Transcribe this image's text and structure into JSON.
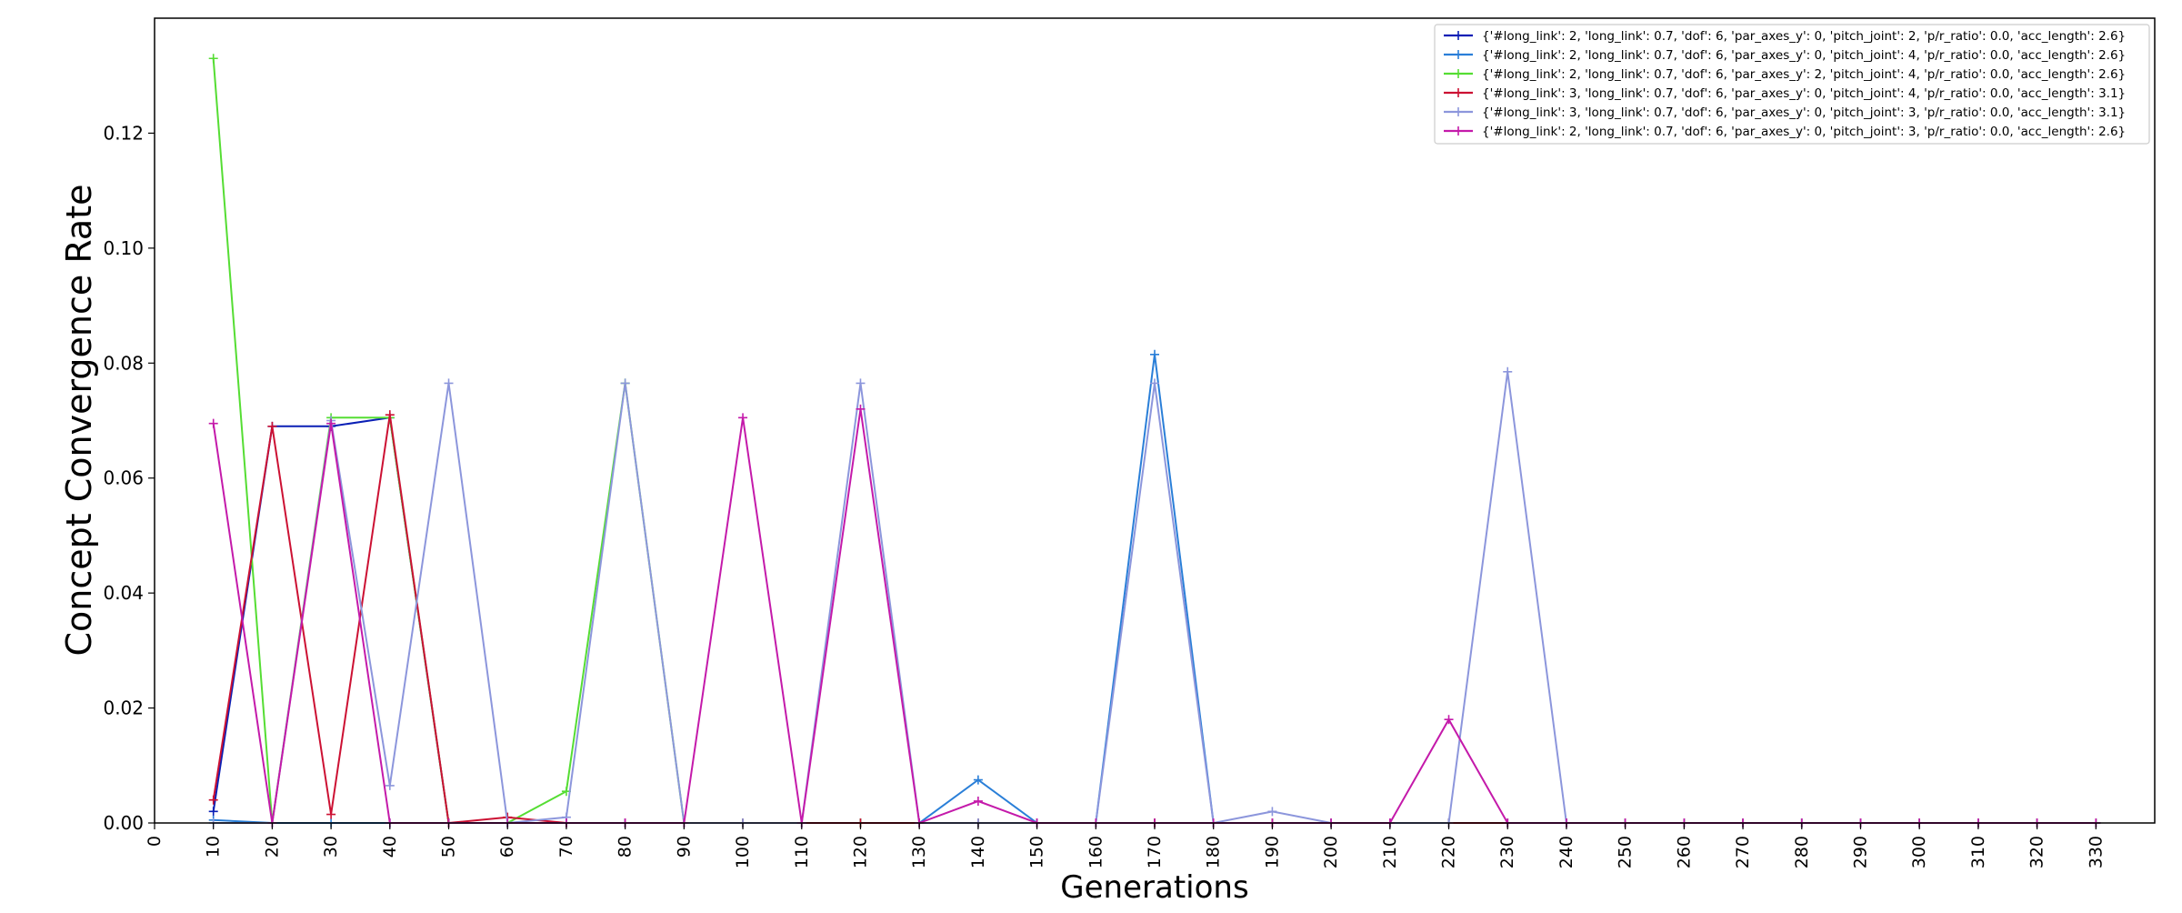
{
  "chart_data": {
    "type": "line",
    "title": "",
    "xlabel": "Generations",
    "ylabel": "Concept Convergence Rate",
    "xlim": [
      0,
      340
    ],
    "ylim": [
      0,
      0.14
    ],
    "x_ticks": [
      0,
      10,
      20,
      30,
      40,
      50,
      60,
      70,
      80,
      90,
      100,
      110,
      120,
      130,
      140,
      150,
      160,
      170,
      180,
      190,
      200,
      210,
      220,
      230,
      240,
      250,
      260,
      270,
      280,
      290,
      300,
      310,
      320,
      330
    ],
    "x_tick_labels": [
      "0",
      "10",
      "20",
      "30",
      "40",
      "50",
      "60",
      "70",
      "80",
      "90",
      "100",
      "110",
      "120",
      "130",
      "140",
      "150",
      "160",
      "170",
      "180",
      "190",
      "200",
      "210",
      "220",
      "230",
      "240",
      "250",
      "260",
      "270",
      "280",
      "290",
      "300",
      "310",
      "320",
      "330"
    ],
    "y_ticks": [
      0,
      0.02,
      0.04,
      0.06,
      0.08,
      0.1,
      0.12
    ],
    "y_tick_labels": [
      "0.00",
      "0.02",
      "0.04",
      "0.06",
      "0.08",
      "0.10",
      "0.12"
    ],
    "grid": false,
    "legend_position": "top-right",
    "x": [
      10,
      20,
      30,
      40,
      50,
      60,
      70,
      80,
      90,
      100,
      110,
      120,
      130,
      140,
      150,
      160,
      170,
      180,
      190,
      200,
      210,
      220,
      230,
      240,
      250,
      260,
      270,
      280,
      290,
      300,
      310,
      320,
      330
    ],
    "series": [
      {
        "name": "{'#long_link': 2, 'long_link': 0.7, 'dof': 6, 'par_axes_y': 0, 'pitch_joint': 2, 'p/r_ratio': 0.0, 'acc_length': 2.6}",
        "color": "#0a1fb5",
        "values": [
          0.002,
          0.069,
          0.069,
          0.0705,
          0,
          0,
          0,
          0,
          0,
          0,
          0,
          0,
          0,
          0,
          0,
          0,
          0,
          0,
          0,
          0,
          0,
          0,
          0,
          0,
          0,
          0,
          0,
          0,
          0,
          0,
          0,
          0,
          0
        ]
      },
      {
        "name": "{'#long_link': 2, 'long_link': 0.7, 'dof': 6, 'par_axes_y': 0, 'pitch_joint': 4, 'p/r_ratio': 0.0, 'acc_length': 2.6}",
        "color": "#2a7fd8",
        "values": [
          0.0005,
          0,
          0,
          0,
          0,
          0,
          0,
          0,
          0,
          0,
          0,
          0,
          0,
          0.0075,
          0,
          0,
          0.0815,
          0,
          0,
          0,
          0,
          0,
          0,
          0,
          0,
          0,
          0,
          0,
          0,
          0,
          0,
          0,
          0
        ]
      },
      {
        "name": "{'#long_link': 2, 'long_link': 0.7, 'dof': 6, 'par_axes_y': 2, 'pitch_joint': 4, 'p/r_ratio': 0.0, 'acc_length': 2.6}",
        "color": "#55dd33",
        "values": [
          0.133,
          0,
          0.0705,
          0.0705,
          0,
          0,
          0.0055,
          0.0765,
          0,
          0,
          0,
          0,
          0,
          0,
          0,
          0,
          0,
          0,
          0,
          0,
          0,
          0,
          0,
          0,
          0,
          0,
          0,
          0,
          0,
          0,
          0,
          0,
          0
        ]
      },
      {
        "name": "{'#long_link': 3, 'long_link': 0.7, 'dof': 6, 'par_axes_y': 0, 'pitch_joint': 4, 'p/r_ratio': 0.0, 'acc_length': 3.1}",
        "color": "#cc1133",
        "values": [
          0.004,
          0.069,
          0.0015,
          0.071,
          0,
          0.001,
          0,
          0,
          0,
          0,
          0,
          0,
          0,
          0,
          0,
          0,
          0,
          0,
          0,
          0,
          0,
          0,
          0,
          0,
          0,
          0,
          0,
          0,
          0,
          0,
          0,
          0,
          0
        ]
      },
      {
        "name": "{'#long_link': 3, 'long_link': 0.7, 'dof': 6, 'par_axes_y': 0, 'pitch_joint': 3, 'p/r_ratio': 0.0, 'acc_length': 3.1}",
        "color": "#8c96dc",
        "values": [
          0,
          0,
          0.07,
          0.0065,
          0.0765,
          0,
          0.001,
          0.0765,
          0,
          0,
          0,
          0.0765,
          0,
          0,
          0,
          0,
          0.0765,
          0,
          0.002,
          0,
          0,
          0,
          0.0785,
          0,
          0,
          0,
          0,
          0,
          0,
          0,
          0,
          0,
          0
        ]
      },
      {
        "name": "{'#long_link': 2, 'long_link': 0.7, 'dof': 6, 'par_axes_y': 0, 'pitch_joint': 3, 'p/r_ratio': 0.0, 'acc_length': 2.6}",
        "color": "#c41aaa",
        "values": [
          0.0695,
          0,
          0.0695,
          0,
          0,
          0,
          0,
          0,
          0,
          0.0705,
          0,
          0.072,
          0,
          0.0038,
          0,
          0,
          0,
          0,
          0,
          0,
          0,
          0.018,
          0,
          0,
          0,
          0,
          0,
          0,
          0,
          0,
          0,
          0,
          0
        ]
      }
    ]
  }
}
